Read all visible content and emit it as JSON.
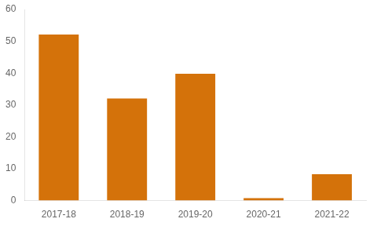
{
  "chart_data": {
    "type": "bar",
    "categories": [
      "2017-18",
      "2018-19",
      "2019-20",
      "2020-21",
      "2021-22"
    ],
    "values": [
      52.1,
      32.06,
      39.81,
      0.766,
      8.248
    ],
    "color": "#D4720A",
    "ylim": [
      0,
      60
    ],
    "yticks": [
      0,
      10,
      20,
      30,
      40,
      50,
      60
    ],
    "grid": false
  }
}
